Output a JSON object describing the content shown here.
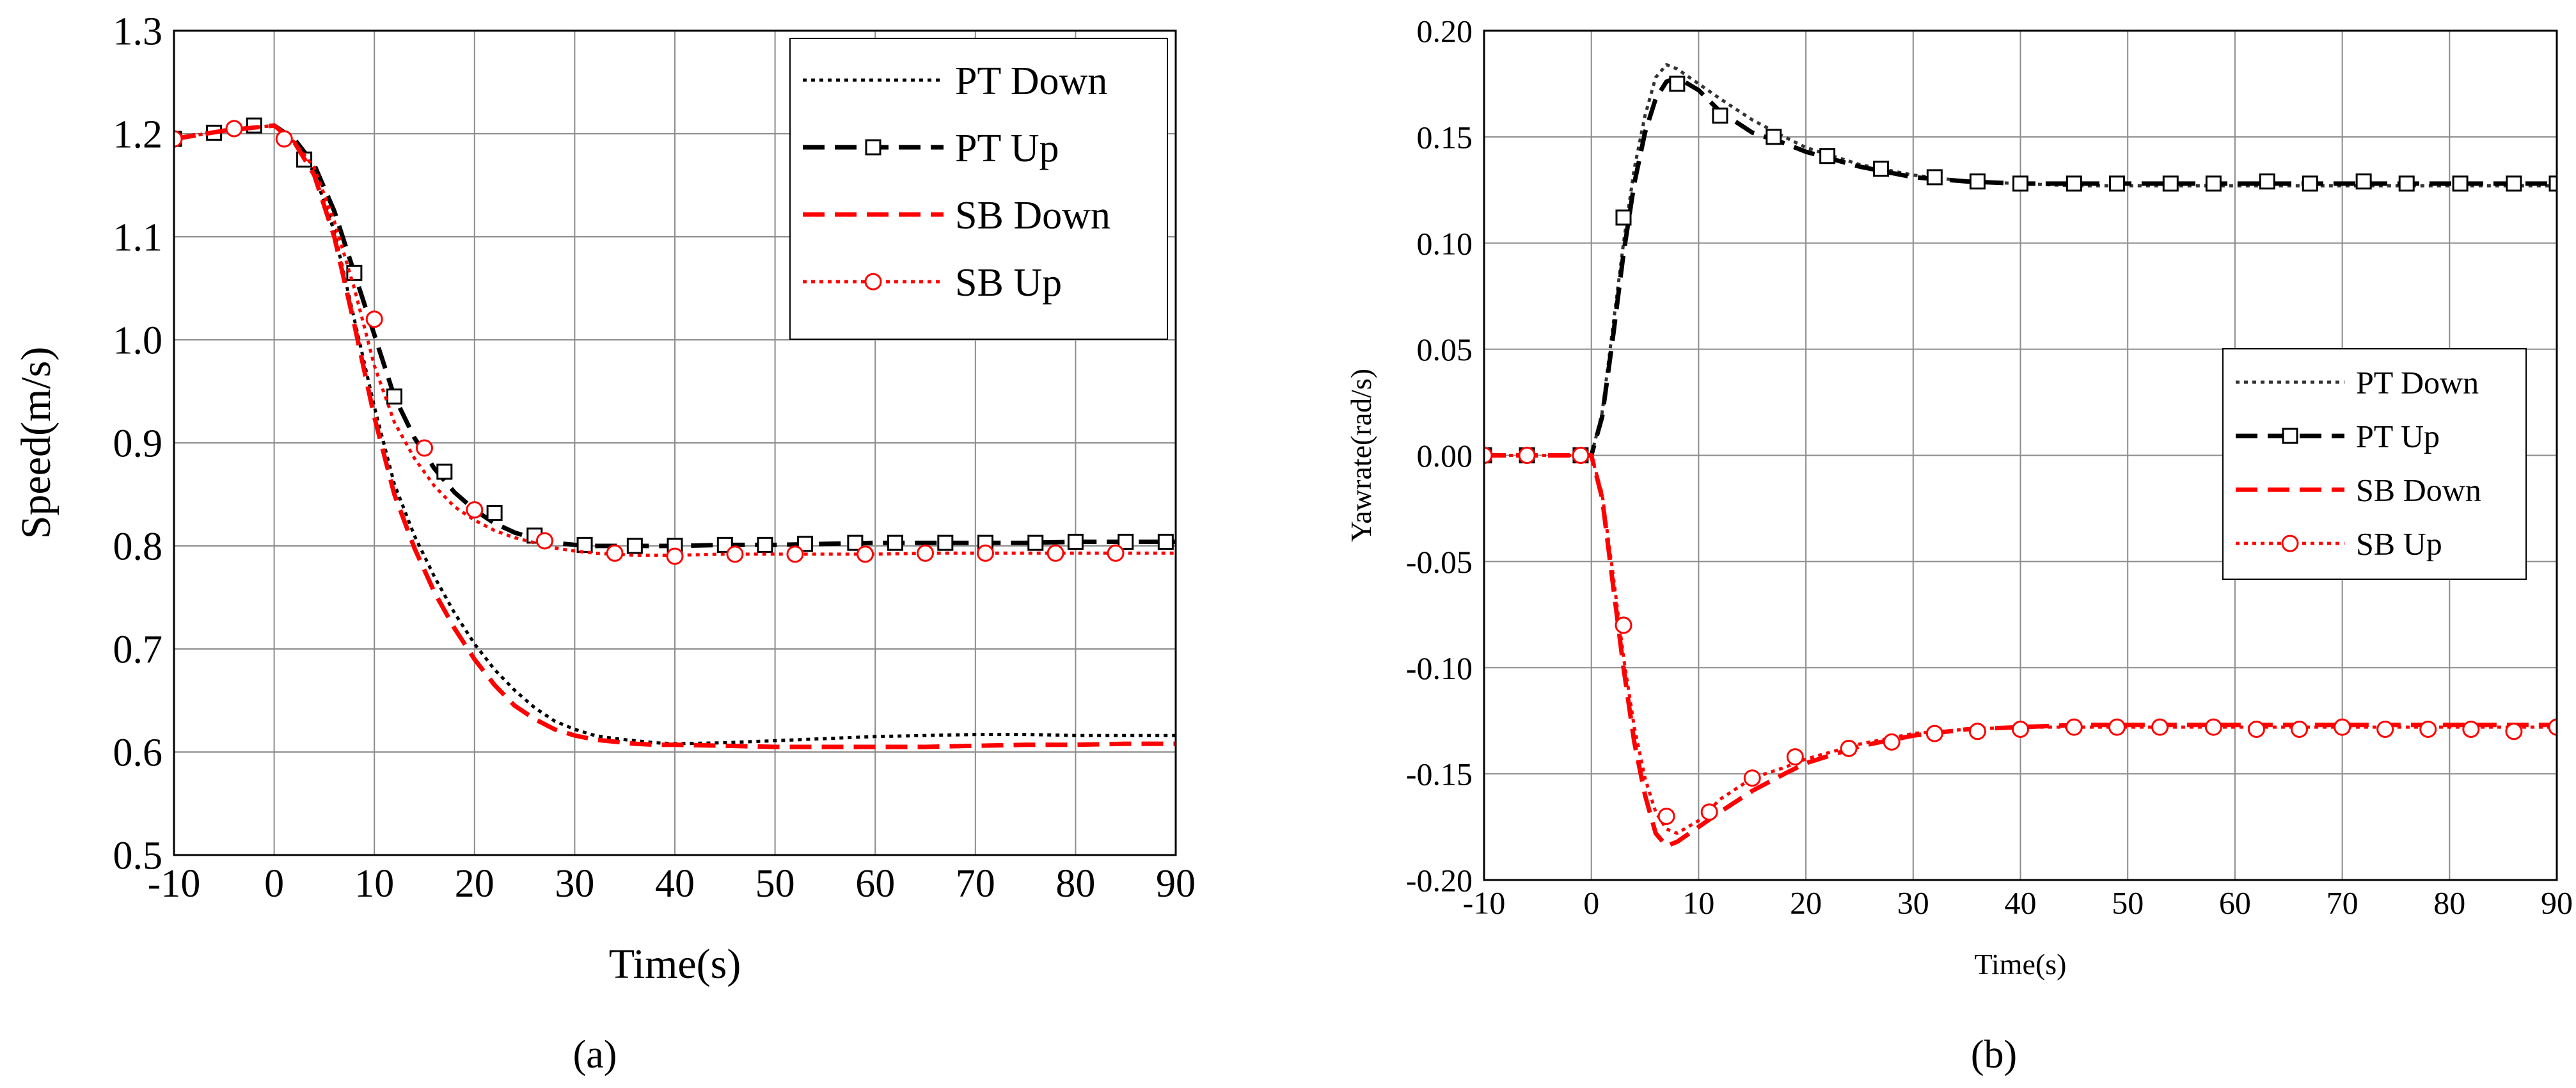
{
  "captions": {
    "a": "(a)",
    "b": "(b)"
  },
  "chart_data": [
    {
      "id": "a",
      "type": "line",
      "xlabel": "Time(s)",
      "ylabel": "Speed(m/s)",
      "xlim": [
        -10,
        90
      ],
      "ylim": [
        0.5,
        1.3
      ],
      "xticks": [
        -10,
        0,
        10,
        20,
        30,
        40,
        50,
        60,
        70,
        80,
        90
      ],
      "yticks": [
        0.5,
        0.6,
        0.7,
        0.8,
        0.9,
        1.0,
        1.1,
        1.2,
        1.3
      ],
      "ytick_decimals": 1,
      "grid": true,
      "legend_position": "top-right",
      "series": [
        {
          "name": "PT Down",
          "color": "#000000",
          "style": "dotted",
          "marker": "none",
          "x": [
            -10,
            -5,
            0,
            2,
            4,
            6,
            8,
            10,
            12,
            14,
            16,
            18,
            20,
            22,
            24,
            26,
            28,
            30,
            32,
            34,
            36,
            38,
            40,
            45,
            50,
            55,
            60,
            65,
            70,
            75,
            80,
            85,
            90
          ],
          "y": [
            1.195,
            1.203,
            1.208,
            1.192,
            1.162,
            1.105,
            1.02,
            0.935,
            0.86,
            0.81,
            0.77,
            0.735,
            0.705,
            0.68,
            0.66,
            0.643,
            0.63,
            0.622,
            0.616,
            0.613,
            0.611,
            0.609,
            0.608,
            0.609,
            0.611,
            0.613,
            0.615,
            0.616,
            0.617,
            0.617,
            0.616,
            0.616,
            0.616
          ]
        },
        {
          "name": "PT Up",
          "color": "#000000",
          "style": "dashed",
          "marker": "square",
          "x": [
            -10,
            -5,
            0,
            2,
            4,
            6,
            8,
            10,
            12,
            14,
            16,
            18,
            20,
            22,
            24,
            26,
            28,
            30,
            32,
            34,
            36,
            38,
            40,
            45,
            50,
            55,
            60,
            65,
            70,
            75,
            80,
            85,
            90
          ],
          "y": [
            1.195,
            1.203,
            1.208,
            1.195,
            1.17,
            1.125,
            1.065,
            1.005,
            0.945,
            0.905,
            0.875,
            0.852,
            0.835,
            0.822,
            0.813,
            0.807,
            0.803,
            0.801,
            0.8,
            0.8,
            0.8,
            0.8,
            0.8,
            0.801,
            0.801,
            0.802,
            0.803,
            0.803,
            0.803,
            0.803,
            0.804,
            0.804,
            0.804
          ],
          "markers_x": [
            -10,
            -6,
            -2,
            3,
            8,
            12,
            17,
            22,
            26,
            31,
            36,
            40,
            45,
            49,
            53,
            58,
            62,
            67,
            71,
            76,
            80,
            85,
            89
          ],
          "markers_y": [
            1.195,
            1.201,
            1.208,
            1.175,
            1.065,
            0.945,
            0.872,
            0.832,
            0.81,
            0.801,
            0.8,
            0.8,
            0.801,
            0.801,
            0.802,
            0.803,
            0.803,
            0.803,
            0.803,
            0.803,
            0.804,
            0.804,
            0.804
          ]
        },
        {
          "name": "SB Down",
          "color": "#ff0000",
          "style": "dashed",
          "marker": "none",
          "x": [
            -10,
            -5,
            0,
            2,
            4,
            6,
            8,
            10,
            12,
            14,
            16,
            18,
            20,
            22,
            24,
            26,
            28,
            30,
            32,
            34,
            36,
            38,
            40,
            45,
            50,
            55,
            60,
            65,
            70,
            75,
            80,
            85,
            90
          ],
          "y": [
            1.195,
            1.203,
            1.208,
            1.192,
            1.16,
            1.1,
            1.015,
            0.925,
            0.85,
            0.798,
            0.755,
            0.72,
            0.69,
            0.665,
            0.645,
            0.632,
            0.622,
            0.616,
            0.612,
            0.61,
            0.608,
            0.607,
            0.607,
            0.606,
            0.605,
            0.605,
            0.605,
            0.605,
            0.606,
            0.607,
            0.607,
            0.608,
            0.608
          ]
        },
        {
          "name": "SB Up",
          "color": "#ff0000",
          "style": "dotted",
          "marker": "circle",
          "x": [
            -10,
            -5,
            0,
            2,
            4,
            6,
            8,
            10,
            12,
            14,
            16,
            18,
            20,
            22,
            24,
            26,
            28,
            30,
            32,
            34,
            36,
            38,
            40,
            45,
            50,
            55,
            60,
            65,
            70,
            75,
            80,
            85,
            90
          ],
          "y": [
            1.195,
            1.203,
            1.208,
            1.192,
            1.167,
            1.115,
            1.05,
            0.975,
            0.92,
            0.885,
            0.858,
            0.838,
            0.825,
            0.815,
            0.808,
            0.803,
            0.798,
            0.795,
            0.793,
            0.792,
            0.791,
            0.791,
            0.791,
            0.792,
            0.792,
            0.792,
            0.792,
            0.793,
            0.793,
            0.793,
            0.793,
            0.793,
            0.793
          ],
          "markers_x": [
            -10,
            -4,
            1,
            10,
            15,
            20,
            27,
            34,
            40,
            46,
            52,
            59,
            65,
            71,
            78,
            84
          ],
          "markers_y": [
            1.195,
            1.205,
            1.195,
            1.02,
            0.895,
            0.835,
            0.805,
            0.793,
            0.79,
            0.792,
            0.792,
            0.792,
            0.793,
            0.793,
            0.793,
            0.793
          ]
        }
      ]
    },
    {
      "id": "b",
      "type": "line",
      "xlabel": "Time(s)",
      "ylabel": "Yawrate(rad/s)",
      "xlim": [
        -10,
        90
      ],
      "ylim": [
        -0.2,
        0.2
      ],
      "xticks": [
        -10,
        0,
        10,
        20,
        30,
        40,
        50,
        60,
        70,
        80,
        90
      ],
      "yticks": [
        -0.2,
        -0.15,
        -0.1,
        -0.05,
        0.0,
        0.05,
        0.1,
        0.15,
        0.2
      ],
      "ytick_decimals": 2,
      "grid": true,
      "legend_position": "center-right",
      "series": [
        {
          "name": "PT Down",
          "color": "#333333",
          "style": "dotted",
          "marker": "none",
          "x": [
            -10,
            -5,
            0,
            1,
            2,
            3,
            4,
            5,
            6,
            7,
            8,
            10,
            12,
            15,
            18,
            20,
            25,
            30,
            35,
            40,
            45,
            50,
            55,
            60,
            65,
            70,
            75,
            80,
            85,
            90
          ],
          "y": [
            0,
            0,
            0,
            0.02,
            0.06,
            0.1,
            0.135,
            0.16,
            0.178,
            0.184,
            0.182,
            0.175,
            0.168,
            0.158,
            0.15,
            0.145,
            0.137,
            0.132,
            0.129,
            0.128,
            0.127,
            0.127,
            0.127,
            0.127,
            0.127,
            0.127,
            0.127,
            0.127,
            0.127,
            0.127
          ]
        },
        {
          "name": "PT Up",
          "color": "#000000",
          "style": "dashed",
          "marker": "square",
          "x": [
            -10,
            -5,
            0,
            1,
            2,
            3,
            4,
            5,
            6,
            7,
            8,
            10,
            12,
            15,
            18,
            20,
            25,
            30,
            35,
            40,
            45,
            50,
            55,
            60,
            65,
            70,
            75,
            80,
            85,
            90
          ],
          "y": [
            0,
            0,
            0,
            0.018,
            0.055,
            0.095,
            0.128,
            0.152,
            0.168,
            0.176,
            0.178,
            0.172,
            0.162,
            0.152,
            0.147,
            0.143,
            0.136,
            0.131,
            0.129,
            0.128,
            0.128,
            0.128,
            0.128,
            0.128,
            0.128,
            0.128,
            0.128,
            0.128,
            0.128,
            0.128
          ],
          "markers_x": [
            -10,
            -6,
            -1,
            3,
            8,
            12,
            17,
            22,
            27,
            32,
            36,
            40,
            45,
            49,
            54,
            58,
            63,
            67,
            72,
            76,
            81,
            86,
            90
          ],
          "markers_y": [
            0,
            0,
            0,
            0.112,
            0.175,
            0.16,
            0.15,
            0.141,
            0.135,
            0.131,
            0.129,
            0.128,
            0.128,
            0.128,
            0.128,
            0.128,
            0.129,
            0.128,
            0.129,
            0.128,
            0.128,
            0.128,
            0.128
          ]
        },
        {
          "name": "SB Down",
          "color": "#ff0000",
          "style": "dashed",
          "marker": "none",
          "x": [
            -10,
            -5,
            0,
            1,
            2,
            3,
            4,
            5,
            6,
            7,
            8,
            10,
            12,
            15,
            18,
            20,
            25,
            30,
            35,
            40,
            45,
            50,
            55,
            60,
            65,
            70,
            75,
            80,
            85,
            90
          ],
          "y": [
            0,
            0,
            0,
            -0.02,
            -0.06,
            -0.1,
            -0.135,
            -0.16,
            -0.178,
            -0.184,
            -0.182,
            -0.175,
            -0.168,
            -0.158,
            -0.15,
            -0.145,
            -0.137,
            -0.132,
            -0.129,
            -0.128,
            -0.127,
            -0.127,
            -0.127,
            -0.127,
            -0.127,
            -0.127,
            -0.127,
            -0.127,
            -0.127,
            -0.127
          ]
        },
        {
          "name": "SB Up",
          "color": "#ff0000",
          "style": "dotted",
          "marker": "circle",
          "x": [
            -10,
            -5,
            0,
            1,
            2,
            3,
            4,
            5,
            6,
            7,
            8,
            10,
            12,
            15,
            18,
            20,
            25,
            30,
            35,
            40,
            45,
            50,
            55,
            60,
            65,
            70,
            75,
            80,
            85,
            90
          ],
          "y": [
            0,
            0,
            0,
            -0.018,
            -0.055,
            -0.095,
            -0.128,
            -0.152,
            -0.168,
            -0.176,
            -0.178,
            -0.172,
            -0.162,
            -0.152,
            -0.147,
            -0.143,
            -0.136,
            -0.131,
            -0.129,
            -0.128,
            -0.128,
            -0.128,
            -0.128,
            -0.128,
            -0.128,
            -0.128,
            -0.128,
            -0.128,
            -0.128,
            -0.128
          ],
          "markers_x": [
            -10,
            -6,
            -1,
            3,
            7,
            11,
            15,
            19,
            24,
            28,
            32,
            36,
            40,
            45,
            49,
            53,
            58,
            62,
            66,
            70,
            74,
            78,
            82,
            86,
            90
          ],
          "markers_y": [
            0,
            0,
            0,
            -0.08,
            -0.17,
            -0.168,
            -0.152,
            -0.142,
            -0.138,
            -0.135,
            -0.131,
            -0.13,
            -0.129,
            -0.128,
            -0.128,
            -0.128,
            -0.128,
            -0.129,
            -0.129,
            -0.128,
            -0.129,
            -0.129,
            -0.129,
            -0.13,
            -0.128
          ]
        }
      ]
    }
  ]
}
